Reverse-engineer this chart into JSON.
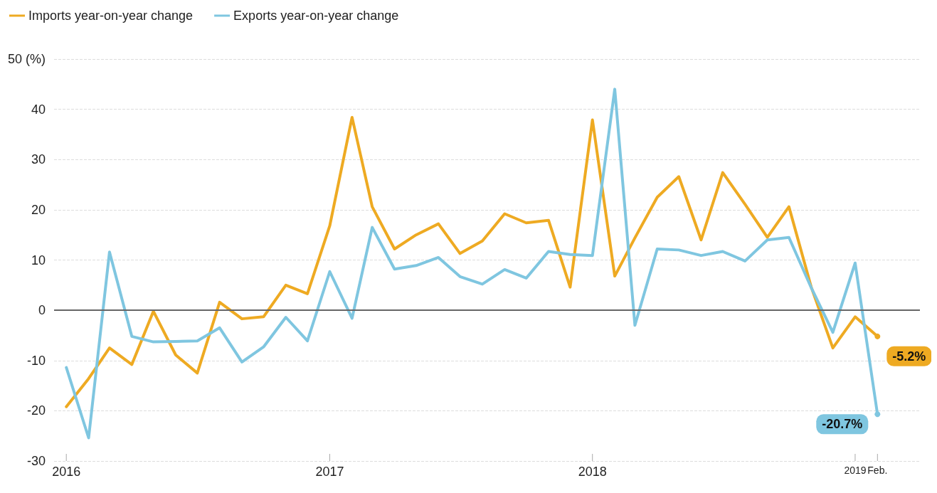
{
  "chart_data": {
    "type": "line",
    "x": [
      "2016-01",
      "2016-02",
      "2016-03",
      "2016-04",
      "2016-05",
      "2016-06",
      "2016-07",
      "2016-08",
      "2016-09",
      "2016-10",
      "2016-11",
      "2016-12",
      "2017-01",
      "2017-02",
      "2017-03",
      "2017-04",
      "2017-05",
      "2017-06",
      "2017-07",
      "2017-08",
      "2017-09",
      "2017-10",
      "2017-11",
      "2017-12",
      "2018-01",
      "2018-02",
      "2018-03",
      "2018-04",
      "2018-05",
      "2018-06",
      "2018-07",
      "2018-08",
      "2018-09",
      "2018-10",
      "2018-11",
      "2018-12",
      "2019-01",
      "2019-02"
    ],
    "series": [
      {
        "name": "Imports year-on-year change",
        "color": "#eeaa22",
        "values": [
          -19.2,
          -13.6,
          -7.5,
          -10.8,
          -0.2,
          -8.9,
          -12.5,
          1.6,
          -1.7,
          -1.3,
          5.0,
          3.3,
          16.8,
          38.4,
          20.6,
          12.2,
          15.0,
          17.2,
          11.3,
          13.8,
          19.2,
          17.4,
          17.9,
          4.6,
          37.9,
          6.8,
          14.4,
          22.5,
          26.6,
          14.0,
          27.4,
          21.1,
          14.5,
          20.6,
          4.6,
          -7.5,
          -1.3,
          -5.2
        ],
        "value_labels": [
          null,
          null,
          null,
          null,
          null,
          null,
          null,
          null,
          null,
          null,
          null,
          null,
          null,
          null,
          null,
          null,
          null,
          null,
          null,
          null,
          null,
          null,
          null,
          null,
          null,
          null,
          null,
          null,
          null,
          null,
          null,
          null,
          null,
          null,
          null,
          null,
          null,
          "-5.2%"
        ]
      },
      {
        "name": "Exports year-on-year change",
        "color": "#7fc6e0",
        "values": [
          -11.4,
          -25.4,
          11.6,
          -5.2,
          -6.3,
          -6.2,
          -6.1,
          -3.5,
          -10.3,
          -7.3,
          -1.4,
          -6.1,
          7.7,
          -1.6,
          16.5,
          8.2,
          8.9,
          10.5,
          6.7,
          5.2,
          8.1,
          6.4,
          11.7,
          11.1,
          10.9,
          44.0,
          -3.0,
          12.2,
          12.0,
          10.9,
          11.7,
          9.8,
          14.0,
          14.5,
          4.5,
          -4.4,
          9.4,
          -20.7
        ],
        "value_labels": [
          null,
          null,
          null,
          null,
          null,
          null,
          null,
          null,
          null,
          null,
          null,
          null,
          null,
          null,
          null,
          null,
          null,
          null,
          null,
          null,
          null,
          null,
          null,
          null,
          null,
          null,
          null,
          null,
          null,
          null,
          null,
          null,
          null,
          null,
          null,
          null,
          null,
          "-20.7%"
        ]
      }
    ],
    "xlim": [
      "2015-12-15",
      "2019-04"
    ],
    "xticks": [
      {
        "value": "2016-01",
        "label": "2016"
      },
      {
        "value": "2017-01",
        "label": "2017"
      },
      {
        "value": "2018-01",
        "label": "2018"
      },
      {
        "value": "2019-01",
        "label": "2019"
      },
      {
        "value": "2019-02",
        "label": "Feb."
      }
    ],
    "ylim": [
      -30,
      50
    ],
    "yticks": [
      -30,
      -20,
      -10,
      0,
      10,
      20,
      30,
      40,
      {
        "value": 50,
        "label": "50 (%)"
      }
    ],
    "ref_lines": [
      {
        "axis": "y",
        "value": 0,
        "color": "#666666",
        "line_style": "solid"
      }
    ],
    "grid": "y",
    "legend": "top left",
    "marker": "none",
    "line_style": "solid"
  }
}
